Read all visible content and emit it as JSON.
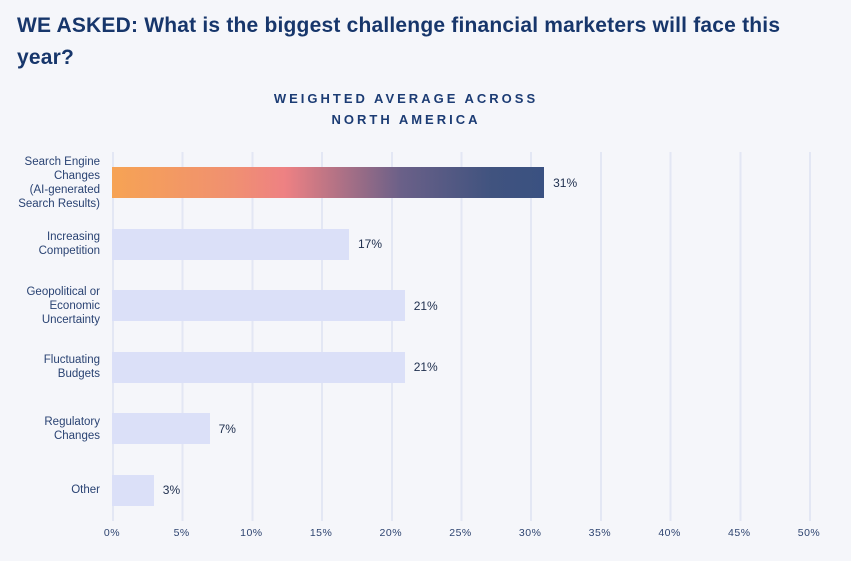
{
  "page": {
    "background_color": "#f5f6fa"
  },
  "header": {
    "title_prefix": "WE ASKED:",
    "title_rest": " What is the biggest challenge financial marketers will face this year?"
  },
  "chart_data": {
    "type": "bar",
    "orientation": "horizontal",
    "title": "WEIGHTED AVERAGE ACROSS NORTH AMERICA",
    "subtitle_lines": [
      "WEIGHTED AVERAGE ACROSS",
      "NORTH AMERICA"
    ],
    "categories": [
      "Search Engine Changes (AI-generated Search Results)",
      "Increasing Competition",
      "Geopolitical or Economic Uncertainty",
      "Fluctuating Budgets",
      "Regulatory Changes",
      "Other"
    ],
    "category_label_lines": [
      [
        "Search Engine",
        "Changes",
        "(AI-generated",
        "Search Results)"
      ],
      [
        "Increasing",
        "Competition"
      ],
      [
        "Geopolitical or",
        "Economic",
        "Uncertainty"
      ],
      [
        "Fluctuating",
        "Budgets"
      ],
      [
        "Regulatory",
        "Changes"
      ],
      [
        "Other"
      ]
    ],
    "values": [
      31,
      17,
      21,
      21,
      7,
      3
    ],
    "value_labels": [
      "31%",
      "17%",
      "21%",
      "21%",
      "7%",
      "3%"
    ],
    "xlabel": "",
    "ylabel": "",
    "xlim": [
      0,
      50
    ],
    "x_tick_step": 5,
    "x_ticks": [
      "0%",
      "5%",
      "10%",
      "15%",
      "20%",
      "25%",
      "30%",
      "35%",
      "40%",
      "45%",
      "50%"
    ],
    "grid": "vertical",
    "legend": "none",
    "highlight_index": 0,
    "colors": {
      "bar_default": "#dbe0f8",
      "bar_highlight_gradient": [
        "#f6a354",
        "#ee8183",
        "#6a6088",
        "#3a5181"
      ],
      "gridline": "#e3e7f4",
      "category_label": "#2a4373",
      "value_label": "#20304f",
      "axis_label": "#2e4470",
      "title": "#17366b",
      "subtitle": "#1c3c74"
    }
  }
}
